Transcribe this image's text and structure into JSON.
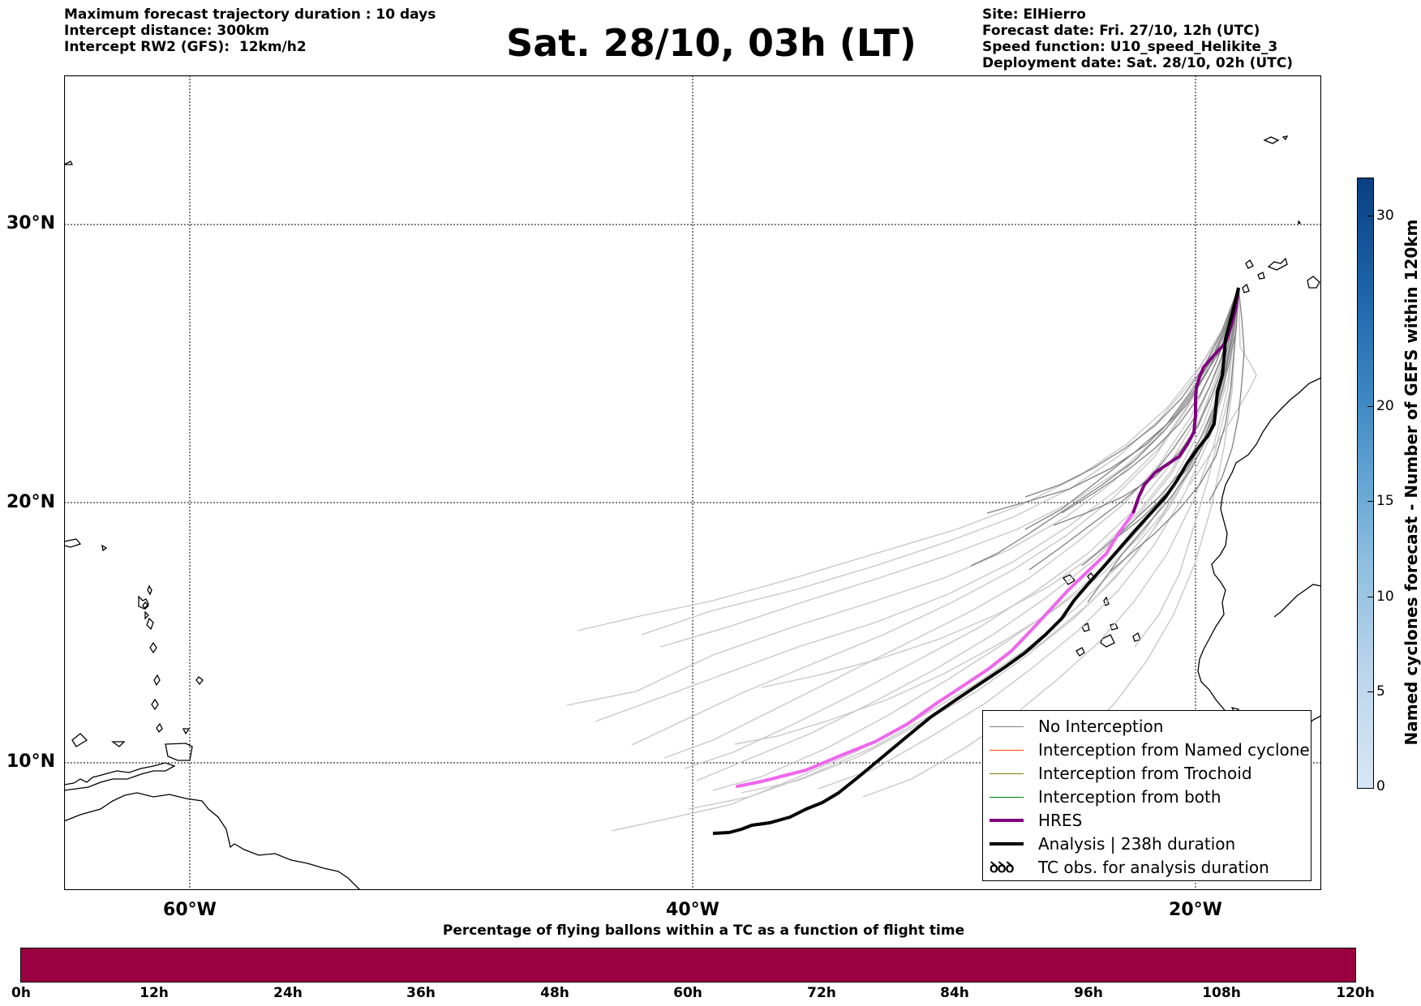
{
  "header": {
    "left_lines": [
      "Maximum forecast trajectory duration : 10 days",
      "Intercept distance: 300km",
      "Intercept RW2 (GFS):  12km/h2"
    ],
    "title": "Sat. 28/10, 03h (LT)",
    "right_lines": [
      "Site: ElHierro",
      "Forecast date: Fri. 27/10, 12h (UTC)",
      "Speed function: U10_speed_Helikite_3",
      "Deployment date: Sat. 28/10, 02h (UTC)"
    ]
  },
  "map": {
    "lat_labels": [
      "30°N",
      "20°N",
      "10°N"
    ],
    "lon_labels": [
      "60°W",
      "40°W",
      "20°W"
    ],
    "colors": {
      "no_interception": "#808080",
      "ensemble_faint": "#c8c8c8",
      "named_cyclone": "#ff4500",
      "trochoid": "#808000",
      "both": "#008000",
      "hres": "#800080",
      "hres_extension": "#ee66ee",
      "analysis": "#000000"
    }
  },
  "legend": {
    "items": [
      {
        "label": "No Interception",
        "color": "#808080",
        "width": 1
      },
      {
        "label": "Interception from Named cyclone",
        "color": "#ff4500",
        "width": 1
      },
      {
        "label": "Interception from Trochoid",
        "color": "#808000",
        "width": 1
      },
      {
        "label": "Interception from both",
        "color": "#008000",
        "width": 1
      },
      {
        "label": "HRES",
        "color": "#800080",
        "width": 4
      },
      {
        "label": "Analysis | 238h duration",
        "color": "#000000",
        "width": 4
      }
    ],
    "tc_obs_label": "TC obs. for analysis duration",
    "tc_obs_glyph": "ꝺꝺꝺ"
  },
  "colorbar_vertical": {
    "label": "Named cyclones forecast - Number of GEFS within 120km",
    "ticks": [
      "30",
      "20",
      "15",
      "10",
      "5",
      "0"
    ],
    "range": [
      0,
      32
    ]
  },
  "colorbar_horizontal": {
    "title": "Percentage of flying ballons within a TC as a function of flight time",
    "ticks": [
      "0h",
      "12h",
      "24h",
      "36h",
      "48h",
      "60h",
      "72h",
      "84h",
      "96h",
      "108h",
      "120h"
    ],
    "fill_color": "#9b0040"
  }
}
